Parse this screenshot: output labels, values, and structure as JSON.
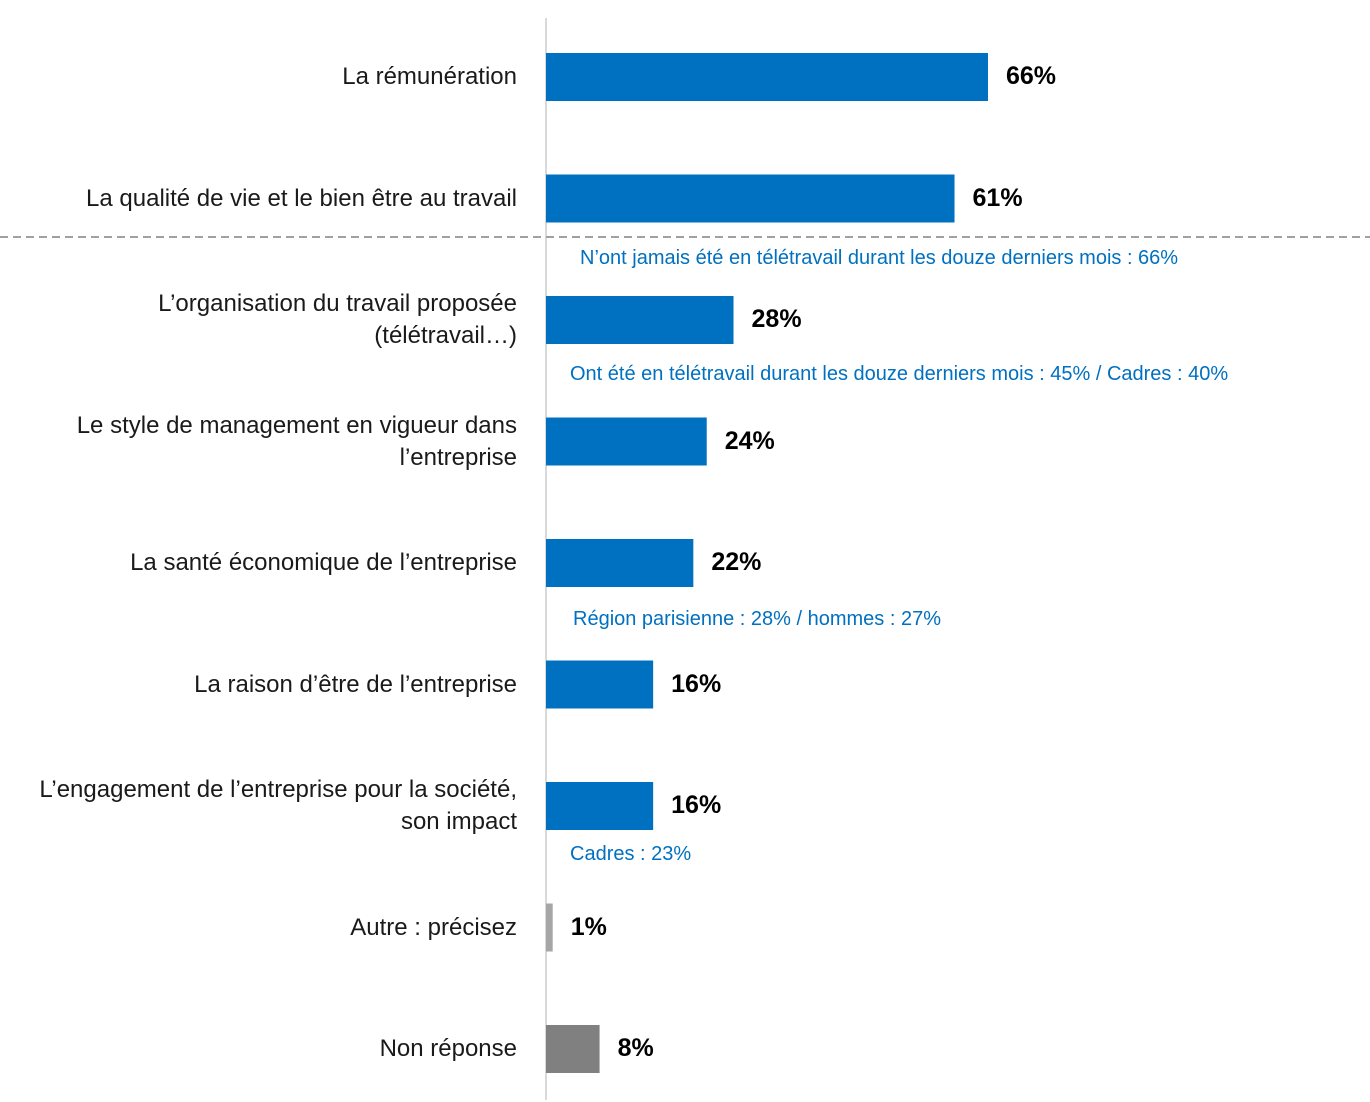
{
  "chart_data": {
    "type": "barh",
    "categories": [
      "La rémunération",
      "La qualité de vie et le bien être au travail",
      "L’organisation du travail proposée (télétravail…)",
      "Le style de management en vigueur dans l’entreprise",
      "La santé économique de l’entreprise",
      "La raison d’être de l’entreprise",
      "L’engagement de l’entreprise pour la société, son impact",
      "Autre : précisez",
      "Non réponse"
    ],
    "values": [
      66,
      61,
      28,
      24,
      22,
      16,
      16,
      1,
      8
    ],
    "value_labels": [
      "66%",
      "61%",
      "28%",
      "24%",
      "22%",
      "16%",
      "16%",
      "1%",
      "8%"
    ],
    "colors": [
      "#0070c0",
      "#0070c0",
      "#0070c0",
      "#0070c0",
      "#0070c0",
      "#0070c0",
      "#0070c0",
      "#a6a6a6",
      "#808080"
    ],
    "xlim": [
      0,
      100
    ],
    "annotations": [
      "N’ont jamais été en télétravail durant les douze derniers mois : 66%",
      "Ont été en télétravail durant les douze derniers mois : 45% / Cadres : 40%",
      "Région parisienne : 28% / hommes : 27%",
      "Cadres : 23%"
    ],
    "annotation_color": "#0070c0"
  }
}
